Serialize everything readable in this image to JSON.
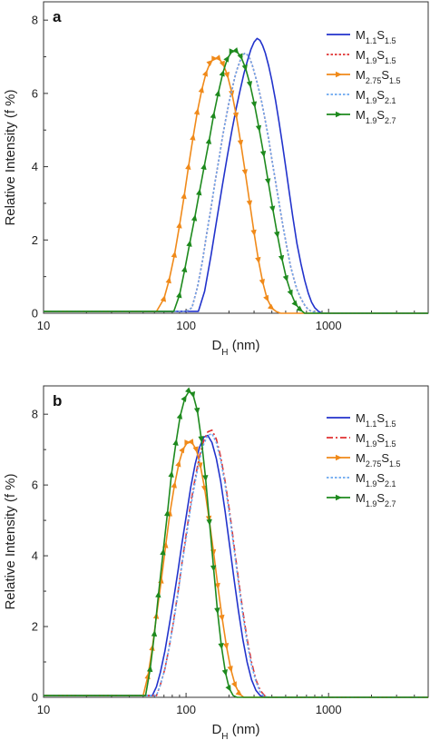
{
  "chart_data": [
    {
      "type": "line",
      "panel": "a",
      "xlabel": "DH (nm)",
      "xlabel_main": "D",
      "xlabel_sub": "H",
      "xlabel_unit": " (nm)",
      "ylabel": "Relative Intensity (f %)",
      "x_scale": "log",
      "xlim": [
        10,
        5000
      ],
      "ylim": [
        0,
        8.5
      ],
      "x_ticks": [
        10,
        100,
        1000
      ],
      "x_tick_labels": [
        "10",
        "100",
        "1000"
      ],
      "y_ticks": [
        0,
        2,
        4,
        6,
        8
      ],
      "y_tick_labels": [
        "0",
        "2",
        "4",
        "6",
        "8"
      ],
      "grid": false,
      "legend_position": "top-right",
      "series": [
        {
          "name": "M1.1S1.5",
          "name_main1": "M",
          "name_sub1": "1.1",
          "name_main2": "S",
          "name_sub2": "1.5",
          "color": "#2233cc",
          "style": "solid",
          "marker": "none",
          "x": [
            10,
            100,
            122,
            135,
            150,
            165,
            180,
            195,
            210,
            225,
            240,
            255,
            270,
            285,
            300,
            315,
            330,
            345,
            360,
            380,
            400,
            425,
            450,
            475,
            500,
            530,
            560,
            600,
            640,
            680,
            720,
            760,
            800,
            850,
            900,
            950,
            5000
          ],
          "y": [
            0.05,
            0.05,
            0.05,
            0.6,
            1.6,
            2.6,
            3.5,
            4.3,
            5.0,
            5.6,
            6.1,
            6.55,
            6.9,
            7.2,
            7.4,
            7.5,
            7.45,
            7.3,
            7.1,
            6.75,
            6.35,
            5.8,
            5.2,
            4.6,
            4.0,
            3.3,
            2.65,
            1.9,
            1.35,
            0.9,
            0.55,
            0.3,
            0.15,
            0.05,
            0,
            0,
            0
          ]
        },
        {
          "name": "M1.9S1.5",
          "name_main1": "M",
          "name_sub1": "1.9",
          "name_main2": "S",
          "name_sub2": "1.5",
          "color": "#e03030",
          "style": "dotted",
          "marker": "none",
          "x": [
            10,
            100,
            110,
            120,
            130,
            140,
            150,
            160,
            170,
            180,
            190,
            200,
            210,
            220,
            230,
            240,
            250,
            260,
            270,
            280,
            290,
            300,
            320,
            340,
            360,
            380,
            400,
            420,
            450,
            480,
            510,
            540,
            570,
            600,
            640,
            680,
            720,
            760,
            800,
            850,
            900,
            5000
          ],
          "y": [
            0.05,
            0.05,
            0.15,
            0.7,
            1.4,
            2.2,
            2.9,
            3.6,
            4.2,
            4.8,
            5.3,
            5.75,
            6.1,
            6.45,
            6.7,
            6.9,
            7.05,
            7.1,
            7.05,
            6.95,
            6.8,
            6.6,
            6.2,
            5.75,
            5.25,
            4.75,
            4.2,
            3.7,
            3.0,
            2.35,
            1.8,
            1.3,
            0.95,
            0.65,
            0.4,
            0.22,
            0.1,
            0.05,
            0.03,
            0,
            0,
            0
          ]
        },
        {
          "name": "M2.75S1.5",
          "name_main1": "M",
          "name_sub1": "2.75",
          "name_main2": "S",
          "name_sub2": "1.5",
          "color": "#f08a1a",
          "style": "solid",
          "marker": "triangle",
          "x": [
            10,
            62,
            70,
            76,
            83,
            90,
            97,
            104,
            112,
            120,
            129,
            138,
            148,
            158,
            170,
            182,
            195,
            210,
            225,
            242,
            260,
            280,
            300,
            322,
            345,
            370,
            398,
            428,
            460,
            5000
          ],
          "y": [
            0.05,
            0.05,
            0.4,
            0.9,
            1.6,
            2.4,
            3.2,
            4.0,
            4.8,
            5.5,
            6.1,
            6.55,
            6.85,
            6.95,
            6.95,
            6.8,
            6.5,
            6.0,
            5.4,
            4.65,
            3.85,
            3.0,
            2.2,
            1.45,
            0.85,
            0.4,
            0.15,
            0.05,
            0,
            0
          ]
        },
        {
          "name": "M1.9S2.1",
          "name_main1": "M",
          "name_sub1": "1.9",
          "name_main2": "S",
          "name_sub2": "2.1",
          "color": "#6aa8f0",
          "style": "dotted",
          "marker": "none",
          "x": [
            10,
            100,
            110,
            120,
            130,
            140,
            150,
            160,
            170,
            180,
            190,
            200,
            210,
            220,
            230,
            240,
            250,
            260,
            270,
            280,
            290,
            300,
            320,
            340,
            360,
            380,
            400,
            420,
            450,
            480,
            510,
            540,
            570,
            600,
            640,
            680,
            720,
            760,
            800,
            850,
            900,
            5000
          ],
          "y": [
            0.05,
            0.05,
            0.15,
            0.7,
            1.4,
            2.2,
            2.9,
            3.6,
            4.2,
            4.8,
            5.3,
            5.75,
            6.1,
            6.45,
            6.7,
            6.9,
            7.05,
            7.1,
            7.05,
            6.95,
            6.8,
            6.6,
            6.2,
            5.75,
            5.25,
            4.75,
            4.2,
            3.7,
            3.0,
            2.35,
            1.8,
            1.3,
            0.95,
            0.65,
            0.4,
            0.22,
            0.1,
            0.05,
            0.03,
            0,
            0,
            0
          ]
        },
        {
          "name": "M1.9S2.7",
          "name_main1": "M",
          "name_sub1": "1.9",
          "name_main2": "S",
          "name_sub2": "2.7",
          "color": "#1e8a1e",
          "style": "solid",
          "marker": "triangle",
          "x": [
            10,
            82,
            90,
            98,
            106,
            115,
            124,
            134,
            145,
            156,
            168,
            181,
            195,
            210,
            226,
            243,
            261,
            281,
            302,
            325,
            350,
            377,
            406,
            437,
            470,
            506,
            545,
            587,
            632,
            680,
            5000
          ],
          "y": [
            0.05,
            0.05,
            0.5,
            1.2,
            1.9,
            2.6,
            3.3,
            4.0,
            4.7,
            5.4,
            6.0,
            6.55,
            6.95,
            7.15,
            7.15,
            7.0,
            6.7,
            6.25,
            5.7,
            5.05,
            4.35,
            3.6,
            2.85,
            2.15,
            1.5,
            0.95,
            0.55,
            0.25,
            0.1,
            0,
            0
          ]
        }
      ]
    },
    {
      "type": "line",
      "panel": "b",
      "xlabel": "DH (nm)",
      "xlabel_main": "D",
      "xlabel_sub": "H",
      "xlabel_unit": " (nm)",
      "ylabel": "Relative Intensity (f %)",
      "x_scale": "log",
      "xlim": [
        10,
        5000
      ],
      "ylim": [
        0,
        8.8
      ],
      "x_ticks": [
        10,
        100,
        1000
      ],
      "x_tick_labels": [
        "10",
        "100",
        "1000"
      ],
      "y_ticks": [
        0,
        2,
        4,
        6,
        8
      ],
      "y_tick_labels": [
        "0",
        "2",
        "4",
        "6",
        "8"
      ],
      "grid": false,
      "legend_position": "top-right",
      "series": [
        {
          "name": "M1.1S1.5",
          "name_main1": "M",
          "name_sub1": "1.1",
          "name_main2": "S",
          "name_sub2": "1.5",
          "color": "#2233cc",
          "style": "solid",
          "marker": "none",
          "x": [
            10,
            58,
            62,
            66,
            71,
            76,
            82,
            88,
            94,
            101,
            108,
            116,
            124,
            133,
            142,
            152,
            163,
            175,
            188,
            202,
            217,
            233,
            250,
            268,
            288,
            309,
            331,
            355,
            380,
            5000
          ],
          "y": [
            0.05,
            0.05,
            0.3,
            0.7,
            1.3,
            2.0,
            2.8,
            3.6,
            4.4,
            5.2,
            5.95,
            6.6,
            7.05,
            7.35,
            7.4,
            7.2,
            6.75,
            6.1,
            5.25,
            4.3,
            3.35,
            2.45,
            1.65,
            1.0,
            0.5,
            0.2,
            0.05,
            0,
            0,
            0
          ]
        },
        {
          "name": "M1.9S1.5",
          "name_main1": "M",
          "name_sub1": "1.9",
          "name_main2": "S",
          "name_sub2": "1.5",
          "color": "#e03030",
          "style": "dashdot",
          "marker": "none",
          "x": [
            10,
            62,
            66,
            71,
            76,
            82,
            88,
            94,
            101,
            108,
            116,
            124,
            133,
            142,
            152,
            163,
            175,
            188,
            202,
            217,
            233,
            250,
            268,
            288,
            309,
            331,
            355,
            380,
            5000
          ],
          "y": [
            0.05,
            0.05,
            0.35,
            0.8,
            1.4,
            2.2,
            3.0,
            3.85,
            4.7,
            5.5,
            6.2,
            6.8,
            7.25,
            7.5,
            7.55,
            7.3,
            6.8,
            6.1,
            5.25,
            4.3,
            3.35,
            2.45,
            1.65,
            1.0,
            0.5,
            0.2,
            0.05,
            0,
            0
          ]
        },
        {
          "name": "M2.75S1.5",
          "name_main1": "M",
          "name_sub1": "2.75",
          "name_main2": "S",
          "name_sub2": "1.5",
          "color": "#f08a1a",
          "style": "solid",
          "marker": "triangle",
          "x": [
            10,
            50,
            54,
            58,
            62,
            67,
            72,
            77,
            83,
            89,
            95,
            102,
            110,
            118,
            126,
            135,
            145,
            156,
            167,
            179,
            192,
            206,
            221,
            237,
            254,
            272,
            5000
          ],
          "y": [
            0.05,
            0.05,
            0.6,
            1.4,
            2.3,
            3.3,
            4.3,
            5.2,
            6.0,
            6.6,
            7.0,
            7.2,
            7.2,
            7.0,
            6.55,
            5.9,
            5.05,
            4.1,
            3.15,
            2.25,
            1.45,
            0.8,
            0.35,
            0.1,
            0,
            0,
            0
          ]
        },
        {
          "name": "M1.9S2.1",
          "name_main1": "M",
          "name_sub1": "1.9",
          "name_main2": "S",
          "name_sub2": "2.1",
          "color": "#6aa8f0",
          "style": "dotted",
          "marker": "none",
          "x": [
            10,
            62,
            66,
            71,
            76,
            82,
            88,
            94,
            101,
            108,
            116,
            124,
            133,
            142,
            152,
            163,
            175,
            188,
            202,
            217,
            233,
            250,
            268,
            288,
            309,
            331,
            355,
            380,
            5000
          ],
          "y": [
            0.05,
            0.05,
            0.35,
            0.8,
            1.4,
            2.15,
            2.95,
            3.8,
            4.6,
            5.4,
            6.1,
            6.7,
            7.15,
            7.4,
            7.45,
            7.2,
            6.7,
            6.0,
            5.15,
            4.2,
            3.25,
            2.35,
            1.55,
            0.9,
            0.45,
            0.15,
            0.03,
            0,
            0
          ]
        },
        {
          "name": "M1.9S2.7",
          "name_main1": "M",
          "name_sub1": "1.9",
          "name_main2": "S",
          "name_sub2": "2.7",
          "color": "#1e8a1e",
          "style": "solid",
          "marker": "triangle",
          "x": [
            10,
            52,
            56,
            60,
            64,
            69,
            74,
            79,
            85,
            91,
            98,
            105,
            112,
            120,
            128,
            137,
            146,
            156,
            166,
            177,
            189,
            201,
            214,
            228,
            5000
          ],
          "y": [
            0.05,
            0.05,
            0.8,
            1.8,
            2.9,
            4.1,
            5.2,
            6.3,
            7.2,
            7.95,
            8.45,
            8.65,
            8.55,
            8.1,
            7.3,
            6.2,
            4.95,
            3.65,
            2.45,
            1.45,
            0.7,
            0.25,
            0.05,
            0,
            0
          ]
        }
      ]
    }
  ]
}
